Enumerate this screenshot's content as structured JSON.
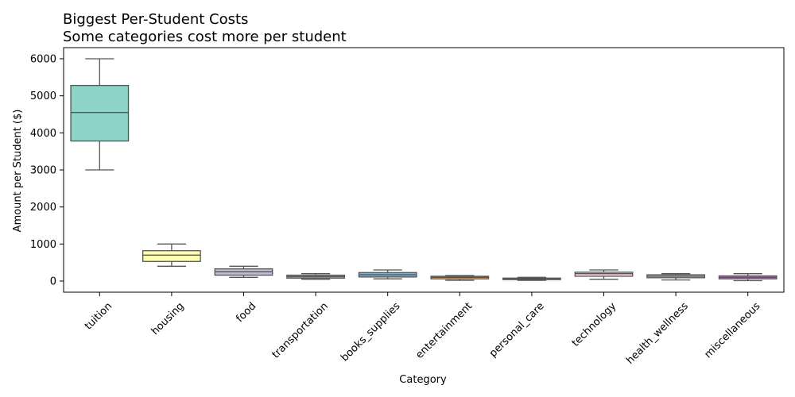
{
  "chart_data": {
    "type": "box",
    "title": "Biggest Per-Student Costs",
    "subtitle": "Some categories cost more per student",
    "xlabel": "Category",
    "ylabel": "Amount per Student ($)",
    "ylim": [
      -300,
      6300
    ],
    "yticks": [
      0,
      1000,
      2000,
      3000,
      4000,
      5000,
      6000
    ],
    "grid": false,
    "categories": [
      "tuition",
      "housing",
      "food",
      "transportation",
      "books_supplies",
      "entertainment",
      "personal_care",
      "technology",
      "health_wellness",
      "miscellaneous"
    ],
    "boxes": [
      {
        "min": 3000,
        "q1": 3780,
        "median": 4550,
        "q3": 5280,
        "max": 6000,
        "color": "#8dd3c7"
      },
      {
        "min": 400,
        "q1": 530,
        "median": 700,
        "q3": 820,
        "max": 1000,
        "color": "#ffffb3"
      },
      {
        "min": 100,
        "q1": 160,
        "median": 250,
        "q3": 330,
        "max": 400,
        "color": "#bebada"
      },
      {
        "min": 50,
        "q1": 80,
        "median": 120,
        "q3": 160,
        "max": 200,
        "color": "#fb8072"
      },
      {
        "min": 60,
        "q1": 110,
        "median": 170,
        "q3": 230,
        "max": 300,
        "color": "#80b1d3"
      },
      {
        "min": 20,
        "q1": 60,
        "median": 100,
        "q3": 130,
        "max": 150,
        "color": "#fdb462"
      },
      {
        "min": 20,
        "q1": 40,
        "median": 60,
        "q3": 80,
        "max": 100,
        "color": "#b3de69"
      },
      {
        "min": 50,
        "q1": 130,
        "median": 200,
        "q3": 240,
        "max": 300,
        "color": "#fccde5"
      },
      {
        "min": 30,
        "q1": 90,
        "median": 130,
        "q3": 170,
        "max": 200,
        "color": "#d9d9d9"
      },
      {
        "min": 10,
        "q1": 60,
        "median": 100,
        "q3": 140,
        "max": 200,
        "color": "#bc80bd"
      }
    ]
  }
}
